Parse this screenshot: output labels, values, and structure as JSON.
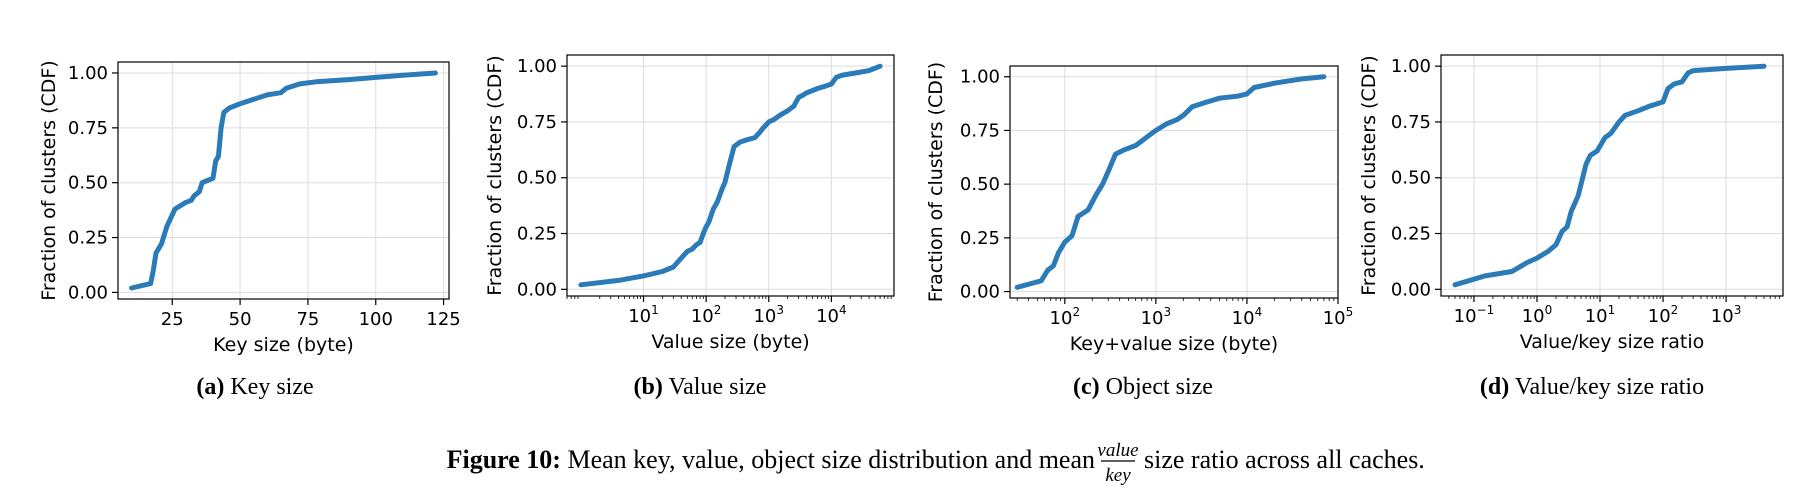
{
  "colors": {
    "series": "#2b7bb9",
    "grid": "#dddddd",
    "axis": "#000000"
  },
  "figure_caption": {
    "label": "Figure 10:",
    "text_before": "Mean key, value, object size distribution and mean",
    "frac_num": "value",
    "frac_den": "key",
    "text_after": "size ratio across all caches."
  },
  "chart_data": [
    {
      "type": "line",
      "subcaption_label": "(a)",
      "subcaption_text": "Key size",
      "xlabel": "Key size (byte)",
      "ylabel": "Fraction of clusters (CDF)",
      "xscale": "linear",
      "xlim": [
        5,
        127
      ],
      "ylim": [
        -0.03,
        1.05
      ],
      "grid": true,
      "xticks": [
        25,
        50,
        75,
        100,
        125
      ],
      "xtick_labels": [
        "25",
        "50",
        "75",
        "100",
        "125"
      ],
      "yticks": [
        0.0,
        0.25,
        0.5,
        0.75,
        1.0
      ],
      "ytick_labels": [
        "0.00",
        "0.25",
        "0.50",
        "0.75",
        "1.00"
      ],
      "x": [
        10,
        17,
        18,
        19,
        21,
        23,
        26,
        30,
        32,
        33,
        35,
        36,
        38,
        40,
        41,
        42,
        43,
        44,
        46,
        50,
        55,
        60,
        65,
        67,
        72,
        78,
        90,
        100,
        110,
        122
      ],
      "y": [
        0.02,
        0.04,
        0.1,
        0.18,
        0.22,
        0.3,
        0.38,
        0.41,
        0.42,
        0.44,
        0.46,
        0.5,
        0.51,
        0.52,
        0.6,
        0.62,
        0.75,
        0.82,
        0.84,
        0.86,
        0.88,
        0.9,
        0.91,
        0.93,
        0.95,
        0.96,
        0.97,
        0.98,
        0.99,
        1.0
      ]
    },
    {
      "type": "line",
      "subcaption_label": "(b)",
      "subcaption_text": "Value size",
      "xlabel": "Value size (byte)",
      "ylabel": "Fraction of clusters (CDF)",
      "xscale": "log",
      "xlim": [
        0.6,
        100000
      ],
      "ylim": [
        -0.03,
        1.05
      ],
      "grid": true,
      "xticks": [
        10,
        100,
        1000,
        10000
      ],
      "xtick_labels": [
        "10",
        "10",
        "10",
        "10"
      ],
      "xtick_exponents": [
        "1",
        "2",
        "3",
        "4"
      ],
      "yticks": [
        0.0,
        0.25,
        0.5,
        0.75,
        1.0
      ],
      "ytick_labels": [
        "0.00",
        "0.25",
        "0.50",
        "0.75",
        "1.00"
      ],
      "x": [
        1,
        4,
        10,
        20,
        30,
        40,
        50,
        60,
        70,
        80,
        90,
        100,
        110,
        130,
        150,
        180,
        200,
        230,
        280,
        350,
        450,
        600,
        700,
        800,
        1000,
        1200,
        1500,
        2000,
        2500,
        3000,
        3500,
        4000,
        6000,
        8000,
        10000,
        12000,
        15000,
        25000,
        40000,
        60000
      ],
      "y": [
        0.02,
        0.04,
        0.06,
        0.08,
        0.1,
        0.14,
        0.17,
        0.18,
        0.2,
        0.21,
        0.25,
        0.28,
        0.3,
        0.36,
        0.39,
        0.45,
        0.48,
        0.55,
        0.64,
        0.66,
        0.67,
        0.68,
        0.7,
        0.72,
        0.75,
        0.76,
        0.78,
        0.8,
        0.82,
        0.86,
        0.87,
        0.88,
        0.9,
        0.91,
        0.92,
        0.95,
        0.96,
        0.97,
        0.98,
        1.0
      ]
    },
    {
      "type": "line",
      "subcaption_label": "(c)",
      "subcaption_text": "Object size",
      "xlabel": "Key+value size (byte)",
      "ylabel": "Fraction of clusters (CDF)",
      "xscale": "log",
      "xlim": [
        25,
        100000
      ],
      "ylim": [
        -0.03,
        1.05
      ],
      "grid": true,
      "xticks": [
        100,
        1000,
        10000,
        100000
      ],
      "xtick_labels": [
        "10",
        "10",
        "10",
        "10"
      ],
      "xtick_exponents": [
        "2",
        "3",
        "4",
        "5"
      ],
      "yticks": [
        0.0,
        0.25,
        0.5,
        0.75,
        1.0
      ],
      "ytick_labels": [
        "0.00",
        "0.25",
        "0.50",
        "0.75",
        "1.00"
      ],
      "x": [
        30,
        45,
        55,
        65,
        75,
        85,
        100,
        120,
        140,
        180,
        220,
        260,
        300,
        360,
        450,
        600,
        800,
        1000,
        1300,
        1700,
        2000,
        2500,
        3500,
        5000,
        8000,
        10000,
        12000,
        20000,
        40000,
        70000
      ],
      "y": [
        0.02,
        0.04,
        0.05,
        0.1,
        0.12,
        0.18,
        0.23,
        0.26,
        0.35,
        0.38,
        0.45,
        0.5,
        0.56,
        0.64,
        0.66,
        0.68,
        0.72,
        0.75,
        0.78,
        0.8,
        0.82,
        0.86,
        0.88,
        0.9,
        0.91,
        0.92,
        0.95,
        0.97,
        0.99,
        1.0
      ]
    },
    {
      "type": "line",
      "subcaption_label": "(d)",
      "subcaption_text": "Value/key size ratio",
      "xlabel": "Value/key size ratio",
      "ylabel": "Fraction of clusters (CDF)",
      "xscale": "log",
      "xlim": [
        0.03,
        8000
      ],
      "ylim": [
        -0.03,
        1.05
      ],
      "grid": true,
      "xticks": [
        0.1,
        1,
        10,
        100,
        1000
      ],
      "xtick_labels": [
        "10",
        "10",
        "10",
        "10",
        "10"
      ],
      "xtick_exponents": [
        "−1",
        "0",
        "1",
        "2",
        "3"
      ],
      "yticks": [
        0.0,
        0.25,
        0.5,
        0.75,
        1.0
      ],
      "ytick_labels": [
        "0.00",
        "0.25",
        "0.50",
        "0.75",
        "1.00"
      ],
      "x": [
        0.05,
        0.15,
        0.4,
        0.7,
        1.0,
        1.5,
        2.0,
        2.5,
        3.0,
        3.5,
        4.5,
        5.0,
        6.0,
        7.0,
        9.0,
        12,
        15,
        20,
        25,
        40,
        60,
        100,
        120,
        150,
        200,
        250,
        300,
        1000,
        4000
      ],
      "y": [
        0.02,
        0.06,
        0.08,
        0.12,
        0.14,
        0.17,
        0.2,
        0.26,
        0.28,
        0.35,
        0.42,
        0.47,
        0.56,
        0.6,
        0.62,
        0.68,
        0.7,
        0.75,
        0.78,
        0.8,
        0.82,
        0.84,
        0.9,
        0.92,
        0.93,
        0.97,
        0.98,
        0.99,
        1.0
      ]
    }
  ]
}
